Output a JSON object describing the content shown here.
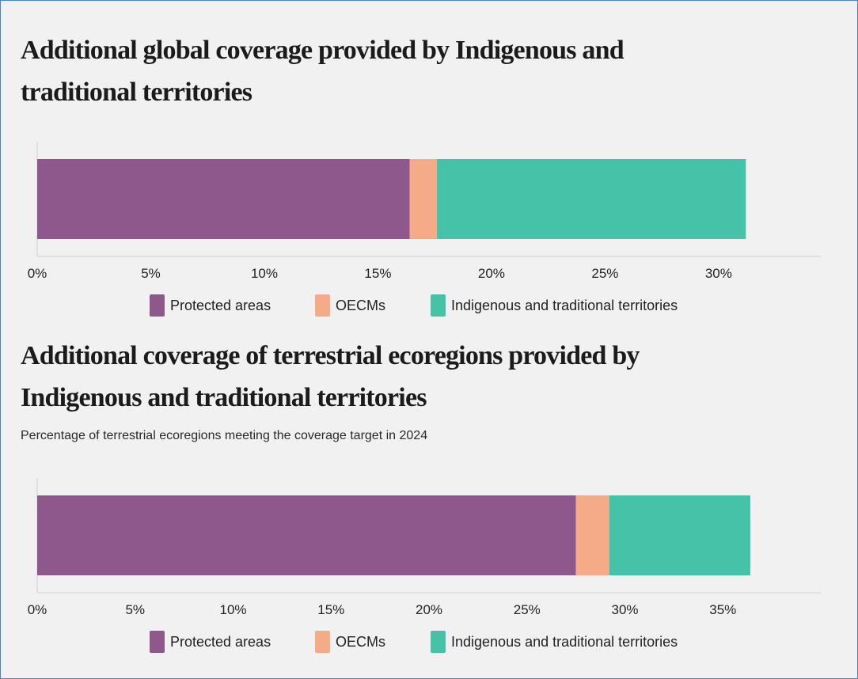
{
  "chart_data": [
    {
      "type": "bar",
      "orientation": "horizontal",
      "stacked": true,
      "title": "Additional global coverage provided by Indigenous and traditional territories",
      "subtitle": "",
      "xlim": [
        0,
        34.5
      ],
      "x_ticks": [
        0,
        5,
        10,
        15,
        20,
        25,
        30
      ],
      "x_tick_labels": [
        "0%",
        "5%",
        "10%",
        "15%",
        "20%",
        "25%",
        "30%"
      ],
      "grid": false,
      "legend_position": "bottom",
      "series": [
        {
          "name": "Protected areas",
          "values": [
            16.4
          ],
          "color": "#8e588c"
        },
        {
          "name": "OECMs",
          "values": [
            1.2
          ],
          "color": "#f5ab88"
        },
        {
          "name": "Indigenous and traditional territories",
          "values": [
            13.6
          ],
          "color": "#45c2a8"
        }
      ]
    },
    {
      "type": "bar",
      "orientation": "horizontal",
      "stacked": true,
      "title": "Additional coverage of terrestrial ecoregions provided by Indigenous and traditional territories",
      "subtitle": "Percentage of terrestrial ecoregions meeting the coverage target in 2024",
      "xlim": [
        0,
        40
      ],
      "x_ticks": [
        0,
        5,
        10,
        15,
        20,
        25,
        30,
        35
      ],
      "x_tick_labels": [
        "0%",
        "5%",
        "10%",
        "15%",
        "20%",
        "25%",
        "30%",
        "35%"
      ],
      "grid": false,
      "legend_position": "bottom",
      "series": [
        {
          "name": "Protected areas",
          "values": [
            27.5
          ],
          "color": "#8e588c"
        },
        {
          "name": "OECMs",
          "values": [
            1.7
          ],
          "color": "#f5ab88"
        },
        {
          "name": "Indigenous and traditional territories",
          "values": [
            7.2
          ],
          "color": "#45c2a8"
        }
      ]
    }
  ]
}
